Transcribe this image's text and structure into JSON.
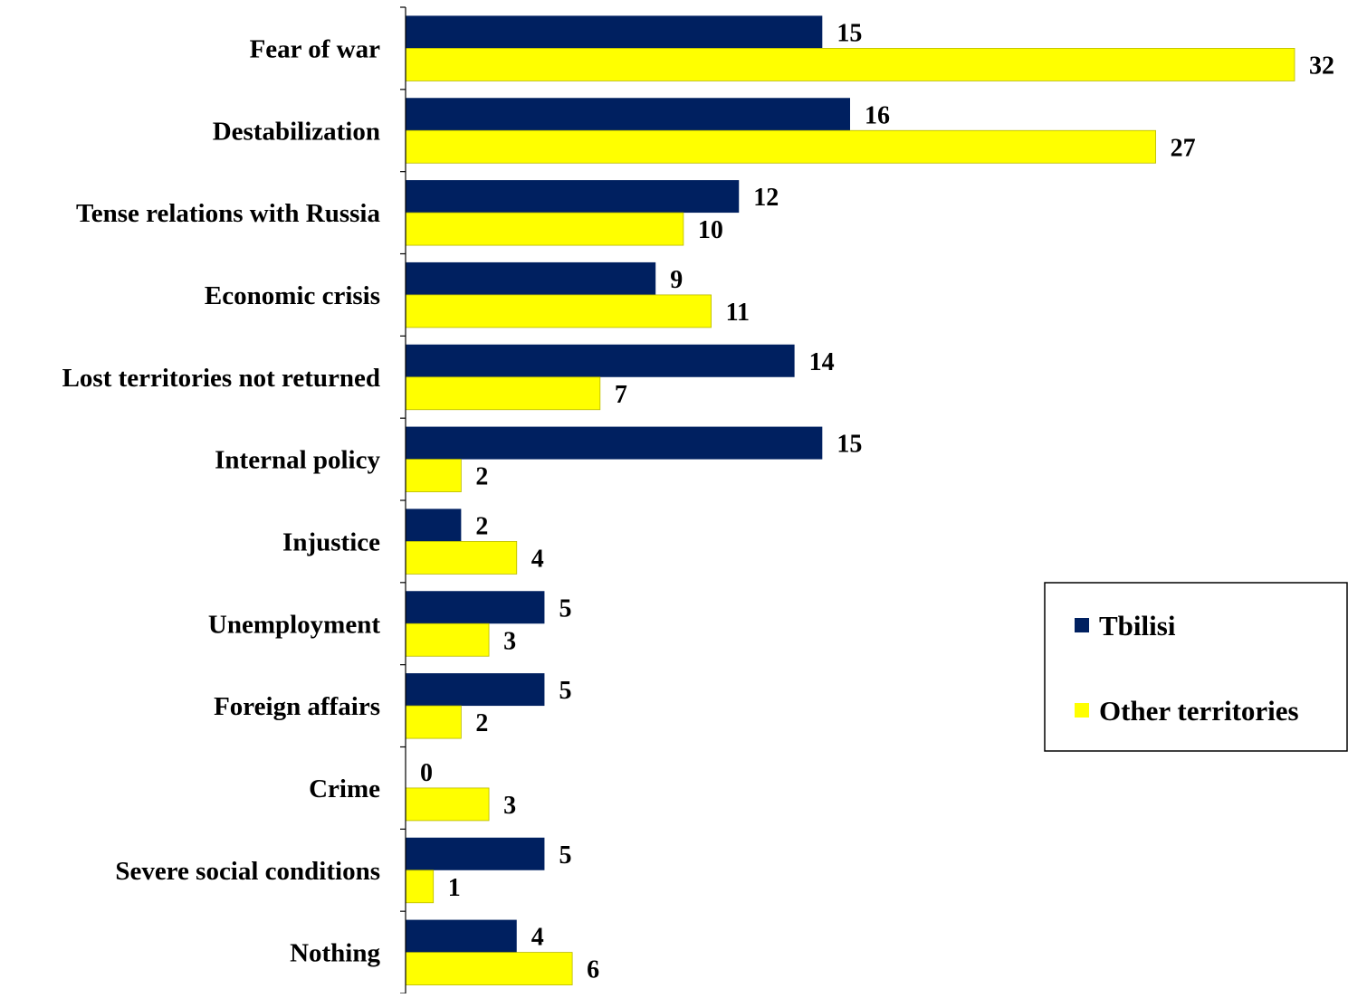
{
  "chart_data": {
    "type": "bar",
    "orientation": "horizontal",
    "title": "",
    "xlabel": "",
    "ylabel": "",
    "xlim": [
      0,
      32
    ],
    "grid": false,
    "legend_position": "right",
    "categories": [
      "Fear of war",
      "Destabilization",
      "Tense relations with Russia",
      "Economic crisis",
      "Lost territories not returned",
      "Internal policy",
      "Injustice",
      "Unemployment",
      "Foreign affairs",
      "Crime",
      "Severe social conditions",
      "Nothing"
    ],
    "series": [
      {
        "name": "Tbilisi",
        "color": "#002060",
        "values": [
          15,
          16,
          12,
          9,
          14,
          15,
          2,
          5,
          5,
          0,
          5,
          4
        ]
      },
      {
        "name": "Other territories",
        "color": "#FFFF00",
        "values": [
          32,
          27,
          10,
          11,
          7,
          2,
          4,
          3,
          2,
          3,
          1,
          6
        ]
      }
    ]
  }
}
